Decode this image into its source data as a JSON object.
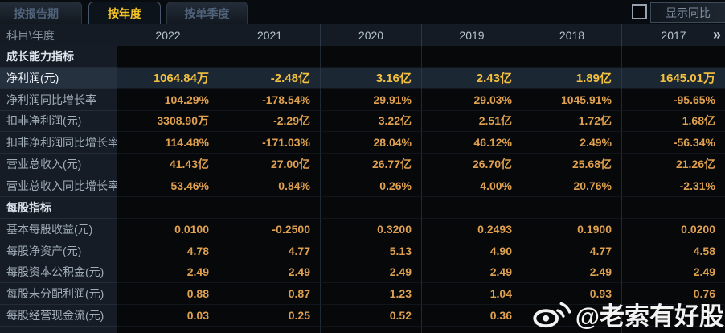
{
  "tabs": [
    {
      "label": "按报告期",
      "active": false
    },
    {
      "label": "按年度",
      "active": true
    },
    {
      "label": "按单季度",
      "active": false
    }
  ],
  "toolbar": {
    "yoy_checkbox_checked": false,
    "yoy_button_label": "显示同比"
  },
  "table": {
    "corner_label": "科目\\年度",
    "years": [
      "2022",
      "2021",
      "2020",
      "2019",
      "2018",
      "2017"
    ],
    "more_label": "»",
    "rows": [
      {
        "type": "section",
        "label": "成长能力指标",
        "values": [
          "",
          "",
          "",
          "",
          "",
          ""
        ]
      },
      {
        "type": "data",
        "highlight": true,
        "label": "净利润(元)",
        "values": [
          "1064.84万",
          "-2.48亿",
          "3.16亿",
          "2.43亿",
          "1.89亿",
          "1645.01万"
        ]
      },
      {
        "type": "data",
        "label": "净利润同比增长率",
        "values": [
          "104.29%",
          "-178.54%",
          "29.91%",
          "29.03%",
          "1045.91%",
          "-95.65%"
        ]
      },
      {
        "type": "data",
        "label": "扣非净利润(元)",
        "values": [
          "3308.90万",
          "-2.29亿",
          "3.22亿",
          "2.51亿",
          "1.72亿",
          "1.68亿"
        ]
      },
      {
        "type": "data",
        "label": "扣非净利润同比增长率",
        "values": [
          "114.48%",
          "-171.03%",
          "28.04%",
          "46.12%",
          "2.49%",
          "-56.34%"
        ]
      },
      {
        "type": "data",
        "label": "营业总收入(元)",
        "values": [
          "41.43亿",
          "27.00亿",
          "26.77亿",
          "26.70亿",
          "25.68亿",
          "21.26亿"
        ]
      },
      {
        "type": "data",
        "label": "营业总收入同比增长率",
        "values": [
          "53.46%",
          "0.84%",
          "0.26%",
          "4.00%",
          "20.76%",
          "-2.31%"
        ]
      },
      {
        "type": "section",
        "label": "每股指标",
        "values": [
          "",
          "",
          "",
          "",
          "",
          ""
        ]
      },
      {
        "type": "data",
        "label": "基本每股收益(元)",
        "values": [
          "0.0100",
          "-0.2500",
          "0.3200",
          "0.2493",
          "0.1900",
          "0.0200"
        ]
      },
      {
        "type": "data",
        "label": "每股净资产(元)",
        "values": [
          "4.78",
          "4.77",
          "5.13",
          "4.90",
          "4.77",
          "4.58"
        ]
      },
      {
        "type": "data",
        "label": "每股资本公积金(元)",
        "values": [
          "2.49",
          "2.49",
          "2.49",
          "2.49",
          "2.49",
          "2.49"
        ]
      },
      {
        "type": "data",
        "label": "每股未分配利润(元)",
        "values": [
          "0.88",
          "0.87",
          "1.23",
          "1.04",
          "0.93",
          "0.76"
        ]
      },
      {
        "type": "data",
        "label": "每股经营现金流(元)",
        "values": [
          "0.03",
          "0.25",
          "0.52",
          "0.36",
          "",
          ""
        ]
      }
    ]
  },
  "watermark": {
    "icon": "weibo-icon",
    "text": "@老索有好股"
  },
  "colors": {
    "accent_gold": "#f4c427",
    "value_orange": "#dfa050",
    "highlight_row_bg": "#1c2734",
    "header_bg": "#141b24"
  }
}
